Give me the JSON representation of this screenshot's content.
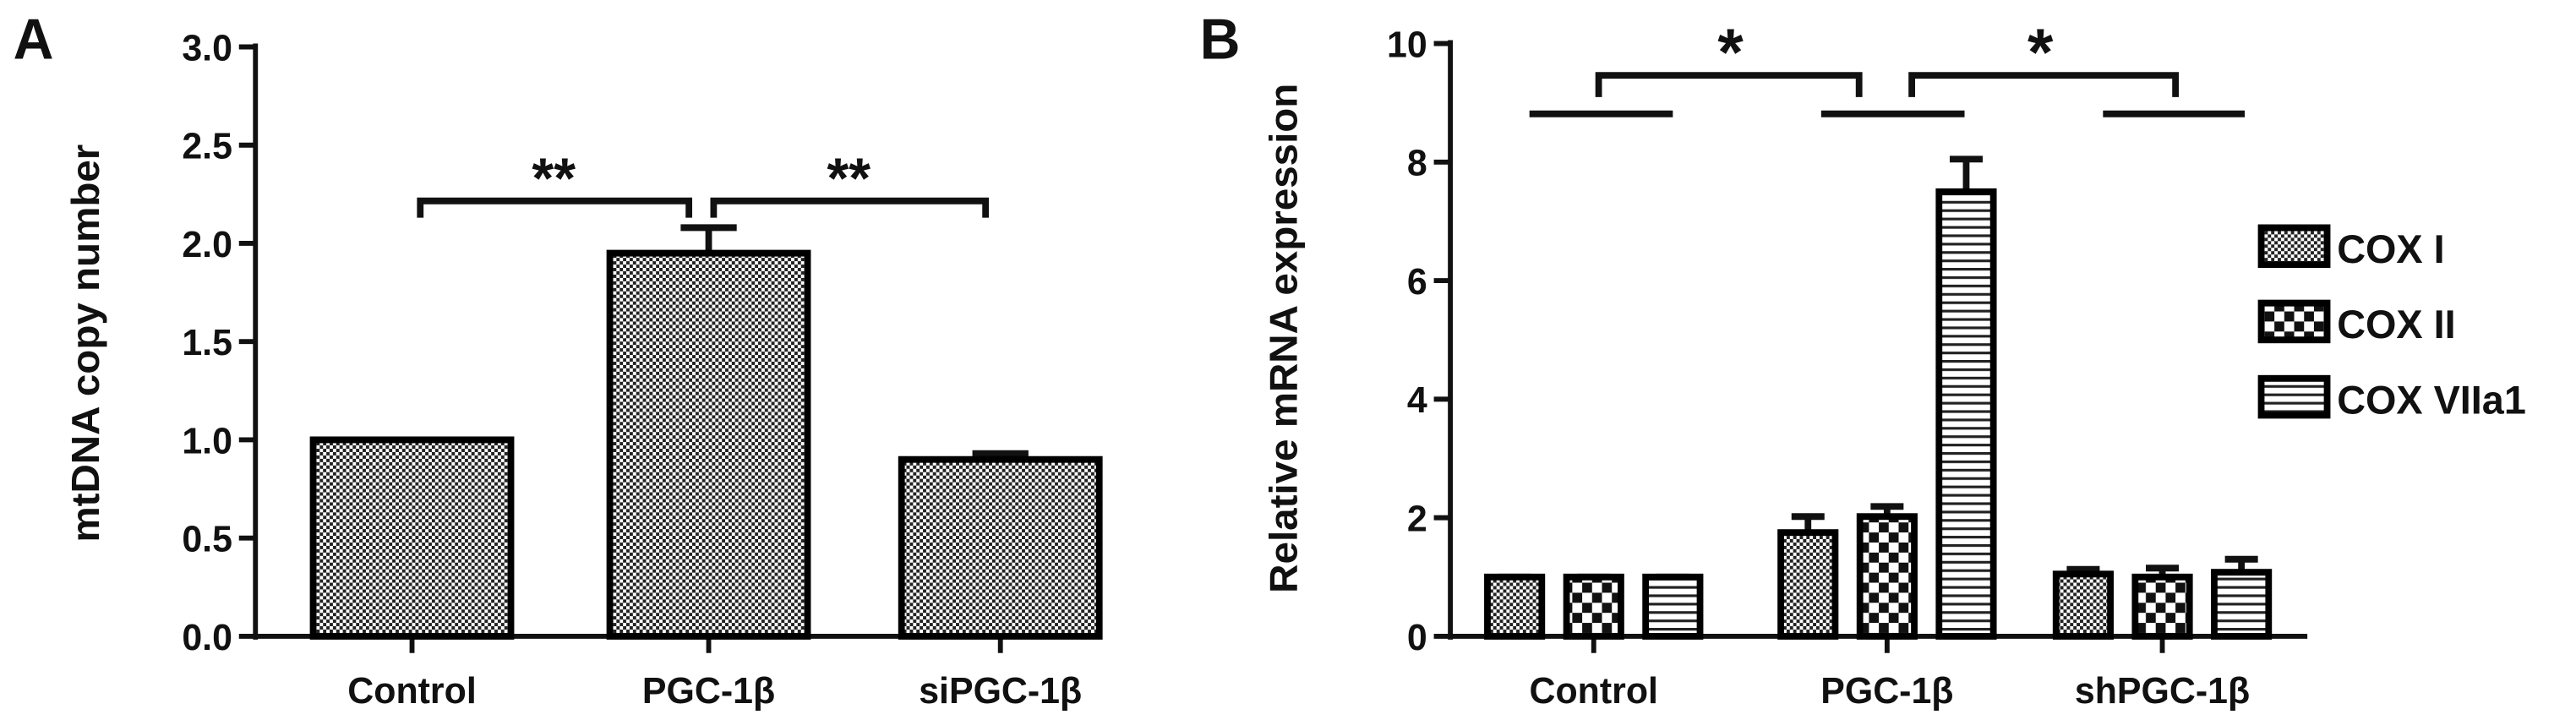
{
  "chart_data": [
    {
      "type": "bar",
      "panel": "A",
      "ylabel": "mtDNA copy number",
      "categories": [
        "Control",
        "PGC-1β",
        "siPGC-1β"
      ],
      "values": [
        1.0,
        1.95,
        0.9
      ],
      "errors": [
        0,
        0.13,
        0.03
      ],
      "color": "#000000",
      "ylim": [
        0,
        3
      ],
      "yticks": [
        {
          "value": 0,
          "label": "0.0"
        },
        {
          "value": 0.5,
          "label": "0.5"
        },
        {
          "value": 1,
          "label": "1.0"
        },
        {
          "value": 1.5,
          "label": "1.5"
        },
        {
          "value": 2,
          "label": "2.0"
        },
        {
          "value": 2.5,
          "label": "2.5"
        },
        {
          "value": 3,
          "label": "3.0"
        }
      ],
      "annotations": [
        "**",
        "**"
      ]
    },
    {
      "type": "grouped_bar",
      "panel": "B",
      "ylabel": "Relative mRNA expression",
      "categories": [
        "Control",
        "PGC-1β",
        "shPGC-1β"
      ],
      "series": [
        {
          "name": "COX I",
          "color": "#000000",
          "values": [
            1.0,
            1.75,
            1.05
          ],
          "errors": [
            0,
            0.27,
            0.08
          ]
        },
        {
          "name": "COX II",
          "color": "#000000",
          "values": [
            1.0,
            2.02,
            1.0
          ],
          "errors": [
            0,
            0.17,
            0.15
          ]
        },
        {
          "name": "COX VIIa1",
          "color": "#000000",
          "values": [
            1.0,
            7.5,
            1.08
          ],
          "errors": [
            0,
            0.55,
            0.22
          ]
        }
      ],
      "ylim": [
        0,
        10
      ],
      "yticks": [
        0,
        2,
        4,
        6,
        8,
        10
      ],
      "annotations": [
        "*",
        "*"
      ]
    }
  ]
}
